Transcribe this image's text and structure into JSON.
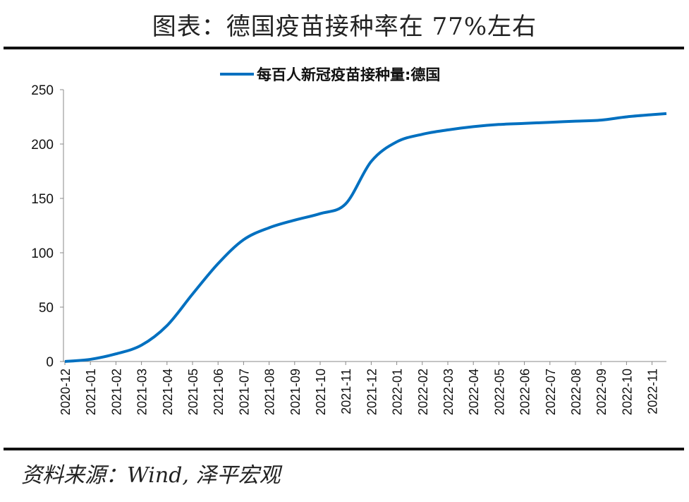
{
  "header": {
    "title": "图表：德国疫苗接种率在 77%左右"
  },
  "footer": {
    "source": "资料来源：Wind, 泽平宏观"
  },
  "chart_data": {
    "type": "line",
    "title": "",
    "legend": {
      "position": "top-center",
      "entries": [
        "每百人新冠疫苗接种量:德国"
      ]
    },
    "color": "#0070C0",
    "xlabel": "",
    "ylabel": "",
    "ylim": [
      0,
      250
    ],
    "yticks": [
      0,
      50,
      100,
      150,
      200,
      250
    ],
    "categories": [
      "2020-12",
      "2021-01",
      "2021-02",
      "2021-03",
      "2021-04",
      "2021-05",
      "2021-06",
      "2021-07",
      "2021-08",
      "2021-09",
      "2021-10",
      "2021-11",
      "2021-12",
      "2022-01",
      "2022-02",
      "2022-03",
      "2022-04",
      "2022-05",
      "2022-06",
      "2022-07",
      "2022-08",
      "2022-09",
      "2022-10",
      "2022-11"
    ],
    "series": [
      {
        "name": "每百人新冠疫苗接种量:德国",
        "values": [
          0,
          2,
          7,
          15,
          33,
          62,
          90,
          112,
          123,
          130,
          136,
          145,
          184,
          202,
          209,
          213,
          216,
          218,
          219,
          220,
          221,
          222,
          225,
          227
        ],
        "last_value": 228
      }
    ]
  }
}
